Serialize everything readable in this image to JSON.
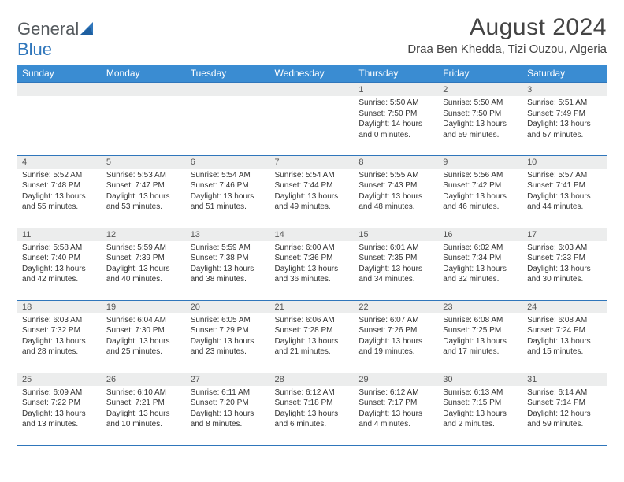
{
  "logo": {
    "word1": "General",
    "word2": "Blue"
  },
  "title": "August 2024",
  "location": "Draa Ben Khedda, Tizi Ouzou, Algeria",
  "weekdays": [
    "Sunday",
    "Monday",
    "Tuesday",
    "Wednesday",
    "Thursday",
    "Friday",
    "Saturday"
  ],
  "colors": {
    "header_bg": "#3a8cd2",
    "header_border": "#2f76bb",
    "row_border": "#2f76bb",
    "day_number_bg": "#eceded",
    "text_dark": "#333333",
    "text_mid": "#555555",
    "logo_gray": "#555a5e",
    "logo_blue": "#2f76bb"
  },
  "weeks": [
    [
      null,
      null,
      null,
      null,
      {
        "n": "1",
        "sunrise": "5:50 AM",
        "sunset": "7:50 PM",
        "daylight": "14 hours and 0 minutes."
      },
      {
        "n": "2",
        "sunrise": "5:50 AM",
        "sunset": "7:50 PM",
        "daylight": "13 hours and 59 minutes."
      },
      {
        "n": "3",
        "sunrise": "5:51 AM",
        "sunset": "7:49 PM",
        "daylight": "13 hours and 57 minutes."
      }
    ],
    [
      {
        "n": "4",
        "sunrise": "5:52 AM",
        "sunset": "7:48 PM",
        "daylight": "13 hours and 55 minutes."
      },
      {
        "n": "5",
        "sunrise": "5:53 AM",
        "sunset": "7:47 PM",
        "daylight": "13 hours and 53 minutes."
      },
      {
        "n": "6",
        "sunrise": "5:54 AM",
        "sunset": "7:46 PM",
        "daylight": "13 hours and 51 minutes."
      },
      {
        "n": "7",
        "sunrise": "5:54 AM",
        "sunset": "7:44 PM",
        "daylight": "13 hours and 49 minutes."
      },
      {
        "n": "8",
        "sunrise": "5:55 AM",
        "sunset": "7:43 PM",
        "daylight": "13 hours and 48 minutes."
      },
      {
        "n": "9",
        "sunrise": "5:56 AM",
        "sunset": "7:42 PM",
        "daylight": "13 hours and 46 minutes."
      },
      {
        "n": "10",
        "sunrise": "5:57 AM",
        "sunset": "7:41 PM",
        "daylight": "13 hours and 44 minutes."
      }
    ],
    [
      {
        "n": "11",
        "sunrise": "5:58 AM",
        "sunset": "7:40 PM",
        "daylight": "13 hours and 42 minutes."
      },
      {
        "n": "12",
        "sunrise": "5:59 AM",
        "sunset": "7:39 PM",
        "daylight": "13 hours and 40 minutes."
      },
      {
        "n": "13",
        "sunrise": "5:59 AM",
        "sunset": "7:38 PM",
        "daylight": "13 hours and 38 minutes."
      },
      {
        "n": "14",
        "sunrise": "6:00 AM",
        "sunset": "7:36 PM",
        "daylight": "13 hours and 36 minutes."
      },
      {
        "n": "15",
        "sunrise": "6:01 AM",
        "sunset": "7:35 PM",
        "daylight": "13 hours and 34 minutes."
      },
      {
        "n": "16",
        "sunrise": "6:02 AM",
        "sunset": "7:34 PM",
        "daylight": "13 hours and 32 minutes."
      },
      {
        "n": "17",
        "sunrise": "6:03 AM",
        "sunset": "7:33 PM",
        "daylight": "13 hours and 30 minutes."
      }
    ],
    [
      {
        "n": "18",
        "sunrise": "6:03 AM",
        "sunset": "7:32 PM",
        "daylight": "13 hours and 28 minutes."
      },
      {
        "n": "19",
        "sunrise": "6:04 AM",
        "sunset": "7:30 PM",
        "daylight": "13 hours and 25 minutes."
      },
      {
        "n": "20",
        "sunrise": "6:05 AM",
        "sunset": "7:29 PM",
        "daylight": "13 hours and 23 minutes."
      },
      {
        "n": "21",
        "sunrise": "6:06 AM",
        "sunset": "7:28 PM",
        "daylight": "13 hours and 21 minutes."
      },
      {
        "n": "22",
        "sunrise": "6:07 AM",
        "sunset": "7:26 PM",
        "daylight": "13 hours and 19 minutes."
      },
      {
        "n": "23",
        "sunrise": "6:08 AM",
        "sunset": "7:25 PM",
        "daylight": "13 hours and 17 minutes."
      },
      {
        "n": "24",
        "sunrise": "6:08 AM",
        "sunset": "7:24 PM",
        "daylight": "13 hours and 15 minutes."
      }
    ],
    [
      {
        "n": "25",
        "sunrise": "6:09 AM",
        "sunset": "7:22 PM",
        "daylight": "13 hours and 13 minutes."
      },
      {
        "n": "26",
        "sunrise": "6:10 AM",
        "sunset": "7:21 PM",
        "daylight": "13 hours and 10 minutes."
      },
      {
        "n": "27",
        "sunrise": "6:11 AM",
        "sunset": "7:20 PM",
        "daylight": "13 hours and 8 minutes."
      },
      {
        "n": "28",
        "sunrise": "6:12 AM",
        "sunset": "7:18 PM",
        "daylight": "13 hours and 6 minutes."
      },
      {
        "n": "29",
        "sunrise": "6:12 AM",
        "sunset": "7:17 PM",
        "daylight": "13 hours and 4 minutes."
      },
      {
        "n": "30",
        "sunrise": "6:13 AM",
        "sunset": "7:15 PM",
        "daylight": "13 hours and 2 minutes."
      },
      {
        "n": "31",
        "sunrise": "6:14 AM",
        "sunset": "7:14 PM",
        "daylight": "12 hours and 59 minutes."
      }
    ]
  ]
}
